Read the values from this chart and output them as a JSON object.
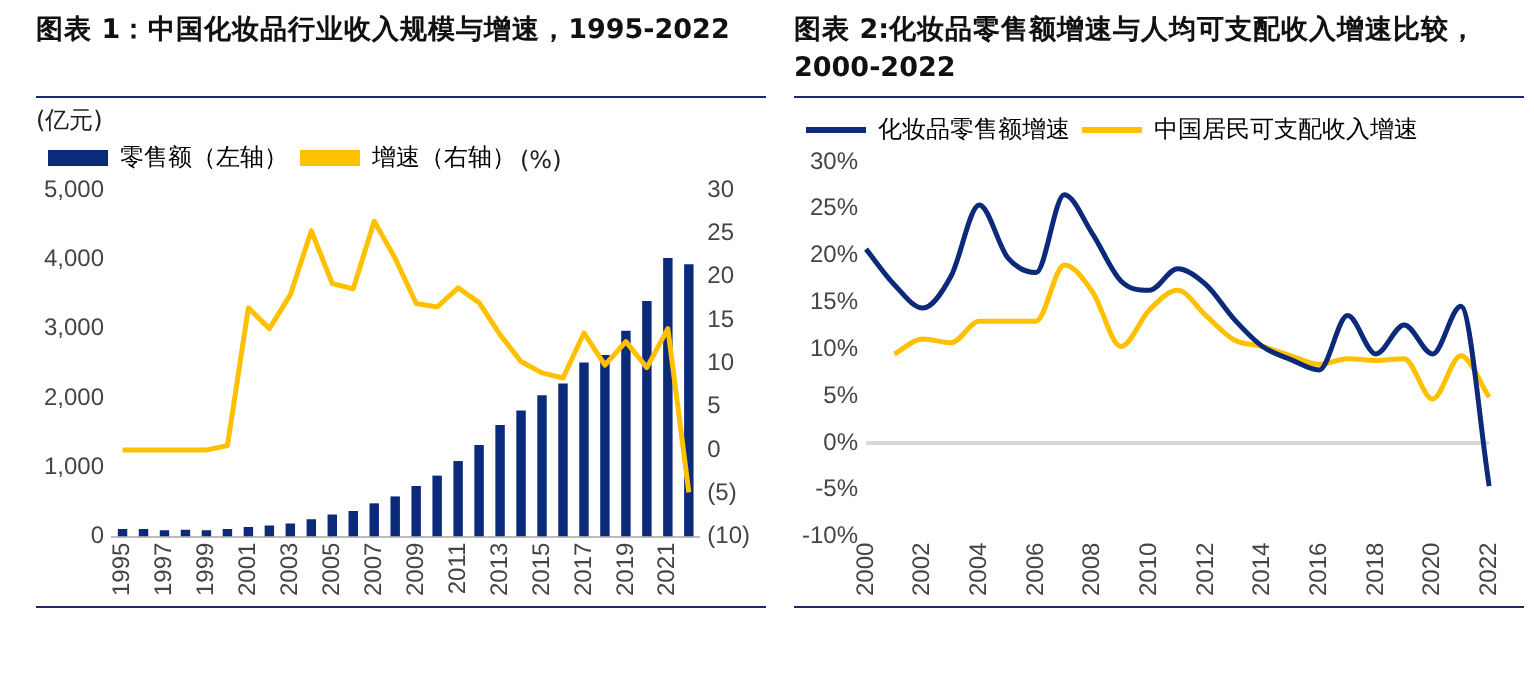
{
  "chart_data": [
    {
      "type": "bar",
      "title": "图表 1：中国化妆品行业收入规模与增速，1995-2022",
      "ylabel": "(亿元)",
      "y2label": "(%)",
      "categories": [
        "1995",
        null,
        "1997",
        null,
        "1999",
        null,
        "2001",
        null,
        "2003",
        null,
        "2005",
        null,
        "2007",
        null,
        "2009",
        null,
        "2011",
        null,
        "2013",
        null,
        "2015",
        null,
        "2017",
        null,
        "2019",
        null,
        "2021",
        null
      ],
      "series": [
        {
          "name": "零售额（左轴）",
          "type": "bar",
          "color": "#0b2a7a",
          "values": [
            110,
            110,
            90,
            100,
            90,
            110,
            140,
            160,
            190,
            250,
            320,
            370,
            480,
            580,
            730,
            880,
            1090,
            1320,
            1610,
            1820,
            2040,
            2210,
            2510,
            2620,
            2970,
            3400,
            4020,
            3930
          ]
        },
        {
          "name": "增速（右轴）",
          "type": "line",
          "axis": "y2",
          "color": "#ffc000",
          "values": [
            0,
            0,
            0,
            0,
            0,
            0.5,
            16.4,
            14,
            17.9,
            25.3,
            19.2,
            18.6,
            26.4,
            22.1,
            16.9,
            16.5,
            18.7,
            17,
            13.3,
            10.2,
            8.9,
            8.3,
            13.5,
            9.8,
            12.5,
            9.5,
            14,
            -4.9
          ]
        }
      ],
      "ylim": [
        0,
        5000
      ],
      "yticks": [
        {
          "value": 0,
          "label": "0"
        },
        {
          "value": 1000,
          "label": "1,000"
        },
        {
          "value": 2000,
          "label": "2,000"
        },
        {
          "value": 3000,
          "label": "3,000"
        },
        {
          "value": 4000,
          "label": "4,000"
        },
        {
          "value": 5000,
          "label": "5,000"
        }
      ],
      "y2lim": [
        -10,
        30
      ],
      "y2ticks": [
        {
          "value": -10,
          "label": "(10)"
        },
        {
          "value": -5,
          "label": "(5)"
        },
        0,
        5,
        10,
        15,
        20,
        25,
        30
      ],
      "legend": "top",
      "grid": false,
      "marker": "none"
    },
    {
      "type": "line",
      "title": "图表 2:化妆品零售额增速与人均可支配收入增速比较，2000-2022",
      "categories": [
        "2000",
        null,
        "2002",
        null,
        "2004",
        null,
        "2006",
        null,
        "2008",
        null,
        "2010",
        null,
        "2012",
        null,
        "2014",
        null,
        "2016",
        null,
        "2018",
        null,
        "2020",
        null,
        "2022"
      ],
      "series": [
        {
          "name": "化妆品零售额增速",
          "color": "#0b2a7a",
          "values": [
            20.7,
            16.9,
            14.4,
            17.8,
            25.4,
            19.8,
            18.2,
            26.5,
            22.3,
            17.3,
            16.3,
            18.6,
            16.9,
            13.2,
            10.3,
            8.9,
            7.8,
            13.6,
            9.5,
            12.6,
            9.5,
            14.6,
            -4.6
          ]
        },
        {
          "name": "中国居民可支配收入增速",
          "color": "#ffc000",
          "values": [
            null,
            9.5,
            11.1,
            10.7,
            13,
            13,
            13,
            19,
            16.1,
            10.3,
            14.2,
            16.3,
            13.6,
            11,
            10.3,
            9.3,
            8.4,
            9,
            8.8,
            9,
            4.7,
            9.3,
            4.9
          ]
        }
      ],
      "ylim": [
        -10,
        30
      ],
      "yticks": [
        {
          "value": -10,
          "label": "-10%"
        },
        {
          "value": -5,
          "label": "-5%"
        },
        {
          "value": 0,
          "label": "0%"
        },
        {
          "value": 5,
          "label": "5%"
        },
        {
          "value": 10,
          "label": "10%"
        },
        {
          "value": 15,
          "label": "15%"
        },
        {
          "value": 20,
          "label": "20%"
        },
        {
          "value": 25,
          "label": "25%"
        },
        {
          "value": 30,
          "label": "30%"
        }
      ],
      "ref_lines": [
        {
          "axis": "y",
          "value": 0,
          "color": "#d9d9d9"
        }
      ],
      "legend": "top",
      "grid": false,
      "marker": "none"
    }
  ]
}
